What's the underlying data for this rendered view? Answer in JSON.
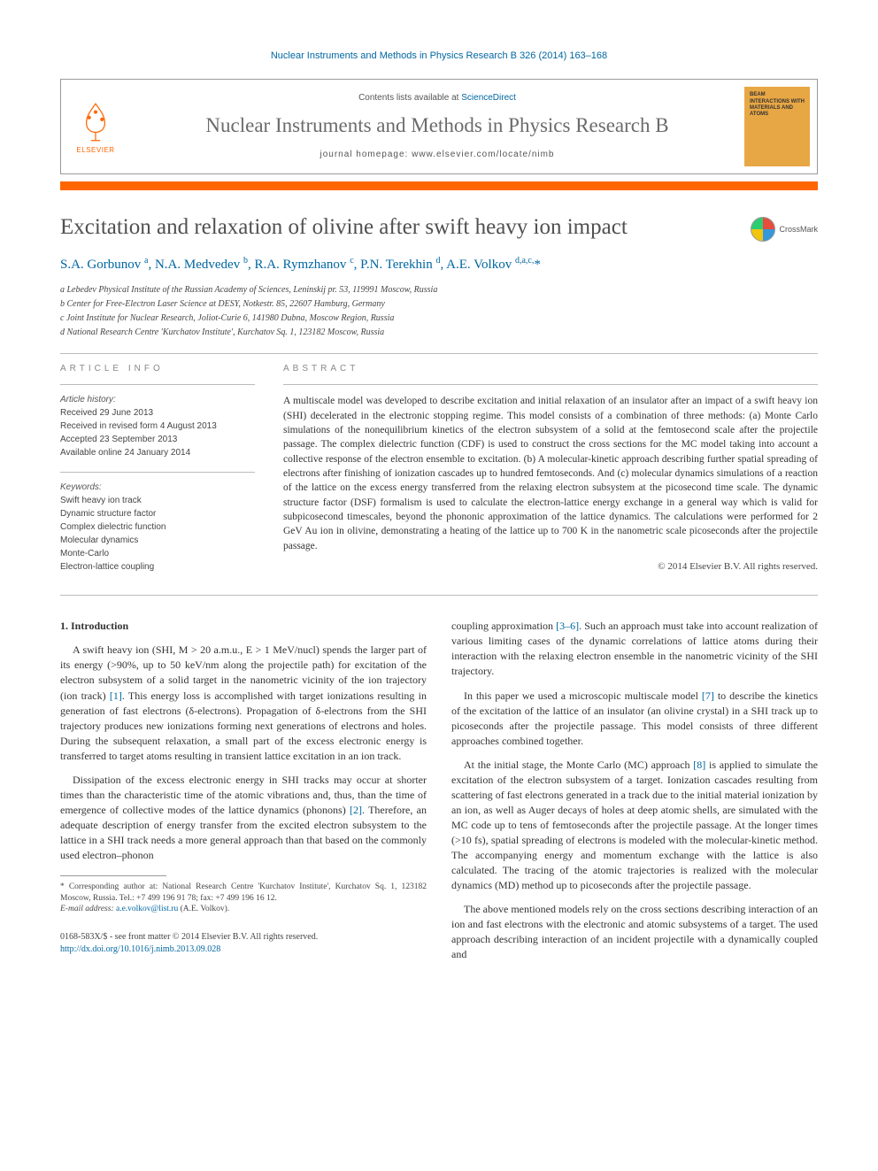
{
  "citation": "Nuclear Instruments and Methods in Physics Research B 326 (2014) 163–168",
  "header": {
    "contents_prefix": "Contents lists available at ",
    "contents_link": "ScienceDirect",
    "journal_name": "Nuclear Instruments and Methods in Physics Research B",
    "homepage_prefix": "journal homepage: ",
    "homepage_url": "www.elsevier.com/locate/nimb",
    "elsevier_label": "ELSEVIER",
    "cover_text_1": "BEAM INTERACTIONS WITH",
    "cover_text_2": "MATERIALS AND ATOMS"
  },
  "article": {
    "title": "Excitation and relaxation of olivine after swift heavy ion impact",
    "crossmark_label": "CrossMark",
    "authors_html": "S.A. Gorbunov <sup>a</sup>, N.A. Medvedev <sup>b</sup>, R.A. Rymzhanov <sup>c</sup>, P.N. Terekhin <sup>d</sup>, A.E. Volkov <sup>d,a,c,</sup><span class='star'>*</span>",
    "affiliations": [
      "a Lebedev Physical Institute of the Russian Academy of Sciences, Leninskij pr. 53, 119991 Moscow, Russia",
      "b Center for Free-Electron Laser Science at DESY, Notkestr. 85, 22607 Hamburg, Germany",
      "c Joint Institute for Nuclear Research, Joliot-Curie 6, 141980 Dubna, Moscow Region, Russia",
      "d National Research Centre 'Kurchatov Institute', Kurchatov Sq. 1, 123182 Moscow, Russia"
    ]
  },
  "info": {
    "heading": "ARTICLE INFO",
    "history_label": "Article history:",
    "history": [
      "Received 29 June 2013",
      "Received in revised form 4 August 2013",
      "Accepted 23 September 2013",
      "Available online 24 January 2014"
    ],
    "keywords_label": "Keywords:",
    "keywords": [
      "Swift heavy ion track",
      "Dynamic structure factor",
      "Complex dielectric function",
      "Molecular dynamics",
      "Monte-Carlo",
      "Electron-lattice coupling"
    ]
  },
  "abstract": {
    "heading": "ABSTRACT",
    "text": "A multiscale model was developed to describe excitation and initial relaxation of an insulator after an impact of a swift heavy ion (SHI) decelerated in the electronic stopping regime. This model consists of a combination of three methods: (a) Monte Carlo simulations of the nonequilibrium kinetics of the electron subsystem of a solid at the femtosecond scale after the projectile passage. The complex dielectric function (CDF) is used to construct the cross sections for the MC model taking into account a collective response of the electron ensemble to excitation. (b) A molecular-kinetic approach describing further spatial spreading of electrons after finishing of ionization cascades up to hundred femtoseconds. And (c) molecular dynamics simulations of a reaction of the lattice on the excess energy transferred from the relaxing electron subsystem at the picosecond time scale. The dynamic structure factor (DSF) formalism is used to calculate the electron-lattice energy exchange in a general way which is valid for subpicosecond timescales, beyond the phononic approximation of the lattice dynamics. The calculations were performed for 2 GeV Au ion in olivine, demonstrating a heating of the lattice up to 700 K in the nanometric scale picoseconds after the projectile passage.",
    "copyright": "© 2014 Elsevier B.V. All rights reserved."
  },
  "body": {
    "section_head": "1. Introduction",
    "left_paras": [
      "A swift heavy ion (SHI, M > 20 a.m.u., E > 1 MeV/nucl) spends the larger part of its energy (>90%, up to 50 keV/nm along the projectile path) for excitation of the electron subsystem of a solid target in the nanometric vicinity of the ion trajectory (ion track) [1]. This energy loss is accomplished with target ionizations resulting in generation of fast electrons (δ-electrons). Propagation of δ-electrons from the SHI trajectory produces new ionizations forming next generations of electrons and holes. During the subsequent relaxation, a small part of the excess electronic energy is transferred to target atoms resulting in transient lattice excitation in an ion track.",
      "Dissipation of the excess electronic energy in SHI tracks may occur at shorter times than the characteristic time of the atomic vibrations and, thus, than the time of emergence of collective modes of the lattice dynamics (phonons) [2]. Therefore, an adequate description of energy transfer from the excited electron subsystem to the lattice in a SHI track needs a more general approach than that based on the commonly used electron–phonon"
    ],
    "right_paras": [
      "coupling approximation [3–6]. Such an approach must take into account realization of various limiting cases of the dynamic correlations of lattice atoms during their interaction with the relaxing electron ensemble in the nanometric vicinity of the SHI trajectory.",
      "In this paper we used a microscopic multiscale model [7] to describe the kinetics of the excitation of the lattice of an insulator (an olivine crystal) in a SHI track up to picoseconds after the projectile passage. This model consists of three different approaches combined together.",
      "At the initial stage, the Monte Carlo (MC) approach [8] is applied to simulate the excitation of the electron subsystem of a target. Ionization cascades resulting from scattering of fast electrons generated in a track due to the initial material ionization by an ion, as well as Auger decays of holes at deep atomic shells, are simulated with the MC code up to tens of femtoseconds after the projectile passage. At the longer times (>10 fs), spatial spreading of electrons is modeled with the molecular-kinetic method. The accompanying energy and momentum exchange with the lattice is also calculated. The tracing of the atomic trajectories is realized with the molecular dynamics (MD) method up to picoseconds after the projectile passage.",
      "The above mentioned models rely on the cross sections describing interaction of an ion and fast electrons with the electronic and atomic subsystems of a target. The used approach describing interaction of an incident projectile with a dynamically coupled and"
    ]
  },
  "footnote": {
    "corresponding": "* Corresponding author at: National Research Centre 'Kurchatov Institute', Kurchatov Sq. 1, 123182 Moscow, Russia. Tel.: +7 499 196 91 78; fax: +7 499 196 16 12.",
    "email_label": "E-mail address:",
    "email": "a.e.volkov@list.ru",
    "email_attrib": "(A.E. Volkov)."
  },
  "footer": {
    "issn_line": "0168-583X/$ - see front matter © 2014 Elsevier B.V. All rights reserved.",
    "doi": "http://dx.doi.org/10.1016/j.nimb.2013.09.028"
  },
  "colors": {
    "link": "#0066a1",
    "orange": "#ff6600",
    "gray_text": "#6b6b6b",
    "cover_bg": "#e8a745"
  }
}
